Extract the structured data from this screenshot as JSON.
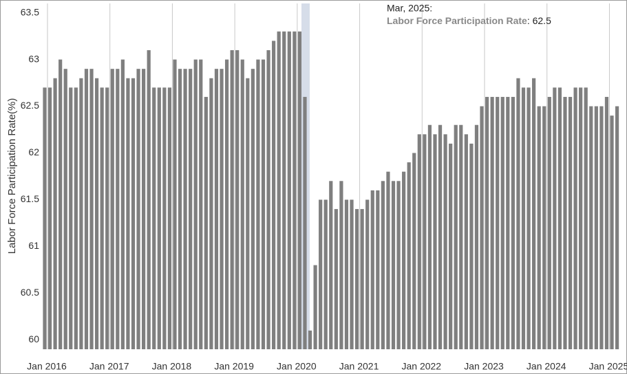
{
  "chart_data": {
    "type": "bar",
    "y_label": "Labor Force Participation Rate(%)",
    "color": "#7f7f7f",
    "ylim": [
      59.9,
      63.6
    ],
    "yticks": [
      60,
      60.5,
      61,
      61.5,
      62,
      62.5,
      63,
      63.5
    ],
    "categories": [
      "Jan 2016",
      null,
      null,
      null,
      null,
      null,
      null,
      null,
      null,
      null,
      null,
      null,
      "Jan 2017",
      null,
      null,
      null,
      null,
      null,
      null,
      null,
      null,
      null,
      null,
      null,
      "Jan 2018",
      null,
      null,
      null,
      null,
      null,
      null,
      null,
      null,
      null,
      null,
      null,
      "Jan 2019",
      null,
      null,
      null,
      null,
      null,
      null,
      null,
      null,
      null,
      null,
      null,
      "Jan 2020",
      null,
      null,
      null,
      null,
      null,
      null,
      null,
      null,
      null,
      null,
      null,
      "Jan 2021",
      null,
      null,
      null,
      null,
      null,
      null,
      null,
      null,
      null,
      null,
      null,
      "Jan 2022",
      null,
      null,
      null,
      null,
      null,
      null,
      null,
      null,
      null,
      null,
      null,
      "Jan 2023",
      null,
      null,
      null,
      null,
      null,
      null,
      null,
      null,
      null,
      null,
      null,
      "Jan 2024",
      null,
      null,
      null,
      null,
      null,
      null,
      null,
      null,
      null,
      null,
      null,
      "Jan 2025",
      null,
      null
    ],
    "values": [
      62.7,
      62.7,
      62.8,
      63.0,
      62.9,
      62.7,
      62.7,
      62.8,
      62.9,
      62.9,
      62.8,
      62.7,
      62.7,
      62.9,
      62.9,
      63.0,
      62.8,
      62.8,
      62.9,
      62.9,
      63.1,
      62.7,
      62.7,
      62.7,
      62.7,
      63.0,
      62.9,
      62.9,
      62.9,
      63.0,
      63.0,
      62.6,
      62.8,
      62.9,
      62.9,
      63.0,
      63.1,
      63.1,
      63.0,
      62.8,
      62.9,
      63.0,
      63.0,
      63.1,
      63.2,
      63.3,
      63.3,
      63.3,
      63.3,
      63.3,
      62.6,
      60.1,
      60.8,
      61.5,
      61.5,
      61.7,
      61.4,
      61.7,
      61.5,
      61.5,
      61.4,
      61.4,
      61.5,
      61.6,
      61.6,
      61.7,
      61.8,
      61.7,
      61.7,
      61.8,
      61.9,
      62.0,
      62.2,
      62.2,
      62.3,
      62.2,
      62.3,
      62.2,
      62.1,
      62.3,
      62.3,
      62.2,
      62.1,
      62.3,
      62.5,
      62.6,
      62.6,
      62.6,
      62.6,
      62.6,
      62.6,
      62.8,
      62.7,
      62.7,
      62.8,
      62.5,
      62.5,
      62.6,
      62.7,
      62.7,
      62.6,
      62.6,
      62.7,
      62.7,
      62.7,
      62.5,
      62.5,
      62.5,
      62.6,
      62.4,
      62.5
    ],
    "tooltip": {
      "title": "Mar, 2025:",
      "label": "Labor Force Participation Rate",
      "suffix": ":",
      "value": 62.5
    }
  }
}
